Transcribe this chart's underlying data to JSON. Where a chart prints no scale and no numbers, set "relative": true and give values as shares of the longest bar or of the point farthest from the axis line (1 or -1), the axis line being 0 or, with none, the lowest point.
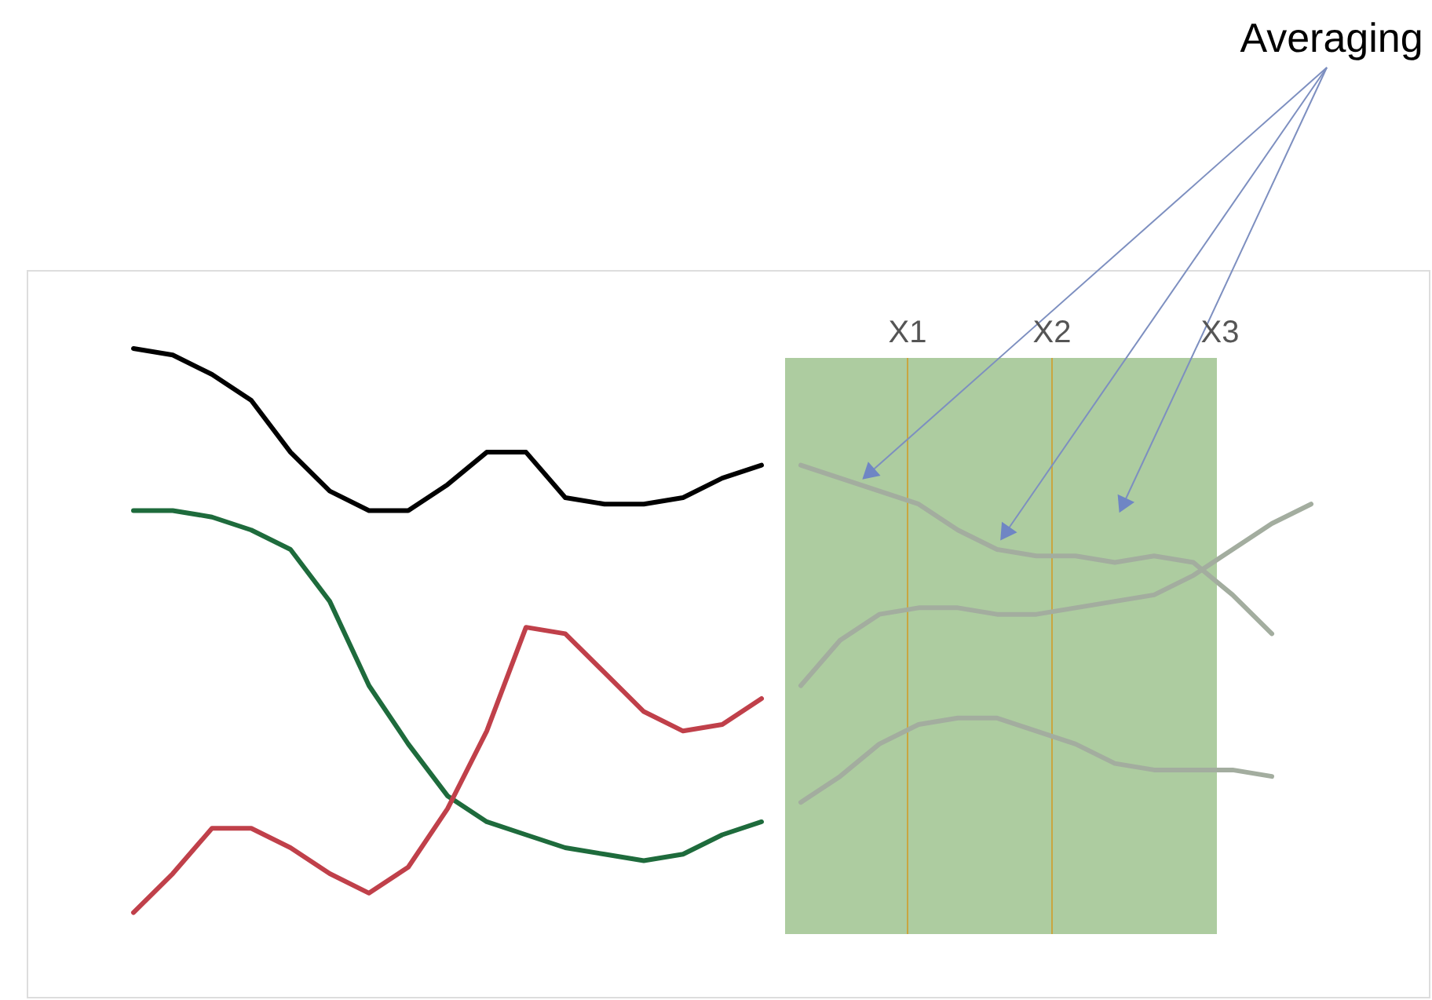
{
  "chart_data": {
    "type": "line",
    "relative": true,
    "tick_labels": false,
    "marker": "none",
    "line_style": "solid",
    "annotations": [
      "Averaging",
      "X1",
      "X2",
      "X3"
    ],
    "categories": [
      null,
      null,
      null,
      null,
      null,
      null,
      null,
      null,
      null,
      null,
      null,
      null,
      null,
      null,
      null,
      null,
      null,
      null,
      null,
      null,
      null,
      null,
      null,
      null,
      null,
      null,
      null,
      null,
      null,
      null,
      null
    ],
    "series": [
      {
        "color": "#000000",
        "values": [
          1.0,
          0.99,
          0.96,
          0.92,
          0.84,
          0.78,
          0.75,
          0.75,
          0.79,
          0.84,
          0.84,
          0.77,
          0.76,
          0.76,
          0.77,
          0.8,
          0.82,
          null,
          null,
          null,
          null,
          null,
          null,
          null,
          null,
          null,
          null,
          null,
          null,
          null,
          null
        ]
      },
      {
        "color": "#1e6b3c",
        "values": [
          0.75,
          0.75,
          0.74,
          0.72,
          0.69,
          0.61,
          0.48,
          0.39,
          0.31,
          0.27,
          0.25,
          0.23,
          0.22,
          0.21,
          0.22,
          0.25,
          0.27,
          null,
          null,
          null,
          null,
          null,
          null,
          null,
          null,
          null,
          null,
          null,
          null,
          null,
          null
        ]
      },
      {
        "color": "#c0404a",
        "values": [
          0.13,
          0.19,
          0.26,
          0.26,
          0.23,
          0.19,
          0.16,
          0.2,
          0.29,
          0.41,
          0.57,
          0.56,
          0.5,
          0.44,
          0.41,
          0.42,
          0.46,
          null,
          null,
          null,
          null,
          null,
          null,
          null,
          null,
          null,
          null,
          null,
          null,
          null,
          null
        ]
      },
      {
        "color": "#a3ad9f",
        "values": [
          null,
          null,
          null,
          null,
          null,
          null,
          null,
          null,
          null,
          null,
          null,
          null,
          null,
          null,
          null,
          null,
          null,
          0.82,
          0.8,
          0.78,
          0.76,
          0.72,
          0.69,
          0.68,
          0.68,
          0.67,
          0.68,
          0.67,
          0.62,
          0.56,
          null
        ]
      },
      {
        "color": "#a3ad9f",
        "values": [
          null,
          null,
          null,
          null,
          null,
          null,
          null,
          null,
          null,
          null,
          null,
          null,
          null,
          null,
          null,
          null,
          null,
          0.48,
          0.55,
          0.59,
          0.6,
          0.6,
          0.59,
          0.59,
          0.6,
          0.61,
          0.62,
          0.65,
          0.69,
          0.73,
          0.76
        ]
      },
      {
        "color": "#a3ad9f",
        "values": [
          null,
          null,
          null,
          null,
          null,
          null,
          null,
          null,
          null,
          null,
          null,
          null,
          null,
          null,
          null,
          null,
          null,
          0.3,
          0.34,
          0.39,
          0.42,
          0.43,
          0.43,
          0.41,
          0.39,
          0.36,
          0.35,
          0.35,
          0.35,
          0.34,
          null
        ]
      }
    ]
  }
}
